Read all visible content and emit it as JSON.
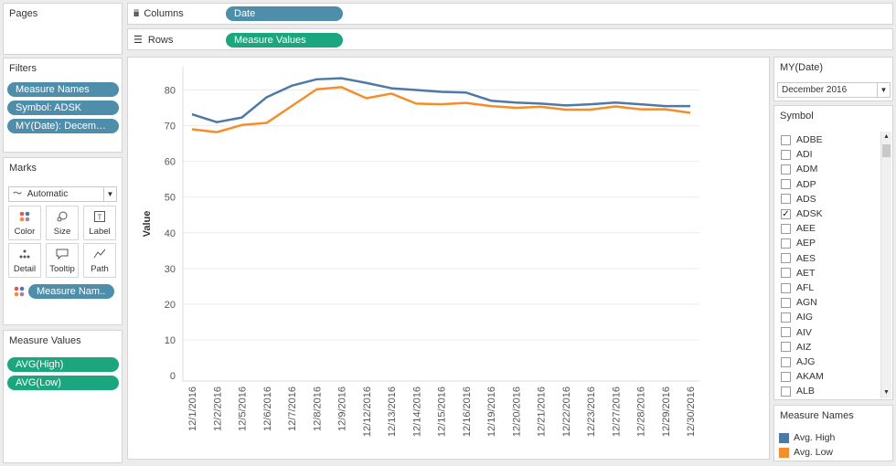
{
  "pages": {
    "title": "Pages"
  },
  "columns": {
    "label": "Columns",
    "pill": "Date"
  },
  "rows": {
    "label": "Rows",
    "pill": "Measure Values"
  },
  "filters": {
    "title": "Filters",
    "items": [
      "Measure Names",
      "Symbol: ADSK",
      "MY(Date): Decembe.."
    ]
  },
  "marks": {
    "title": "Marks",
    "mark_type": "Automatic",
    "buttons": [
      "Color",
      "Size",
      "Label",
      "Detail",
      "Tooltip",
      "Path"
    ],
    "color_pill": "Measure Nam.."
  },
  "measure_values": {
    "title": "Measure Values",
    "items": [
      "AVG(High)",
      "AVG(Low)"
    ]
  },
  "my_date": {
    "title": "MY(Date)",
    "selected": "December 2016"
  },
  "symbol": {
    "title": "Symbol",
    "items": [
      {
        "label": "ADBE",
        "checked": false
      },
      {
        "label": "ADI",
        "checked": false
      },
      {
        "label": "ADM",
        "checked": false
      },
      {
        "label": "ADP",
        "checked": false
      },
      {
        "label": "ADS",
        "checked": false
      },
      {
        "label": "ADSK",
        "checked": true
      },
      {
        "label": "AEE",
        "checked": false
      },
      {
        "label": "AEP",
        "checked": false
      },
      {
        "label": "AES",
        "checked": false
      },
      {
        "label": "AET",
        "checked": false
      },
      {
        "label": "AFL",
        "checked": false
      },
      {
        "label": "AGN",
        "checked": false
      },
      {
        "label": "AIG",
        "checked": false
      },
      {
        "label": "AIV",
        "checked": false
      },
      {
        "label": "AIZ",
        "checked": false
      },
      {
        "label": "AJG",
        "checked": false
      },
      {
        "label": "AKAM",
        "checked": false
      },
      {
        "label": "ALB",
        "checked": false
      }
    ]
  },
  "legend": {
    "title": "Measure Names",
    "items": [
      {
        "label": "Avg. High",
        "color": "#4e79a7"
      },
      {
        "label": "Avg. Low",
        "color": "#f28e2b"
      }
    ]
  },
  "chart_data": {
    "type": "line",
    "ylabel": "Value",
    "xlabel": "",
    "ylim": [
      0,
      85
    ],
    "yticks": [
      0,
      10,
      20,
      30,
      40,
      50,
      60,
      70,
      80
    ],
    "grid": true,
    "categories": [
      "12/1/2016",
      "12/2/2016",
      "12/5/2016",
      "12/6/2016",
      "12/7/2016",
      "12/8/2016",
      "12/9/2016",
      "12/12/2016",
      "12/13/2016",
      "12/14/2016",
      "12/15/2016",
      "12/16/2016",
      "12/19/2016",
      "12/20/2016",
      "12/21/2016",
      "12/22/2016",
      "12/23/2016",
      "12/27/2016",
      "12/28/2016",
      "12/29/2016",
      "12/30/2016"
    ],
    "series": [
      {
        "name": "Avg. High",
        "color": "#4e79a7",
        "values": [
          73.2,
          71.0,
          72.3,
          78.0,
          81.2,
          83.0,
          83.3,
          82.0,
          80.5,
          80.0,
          79.5,
          79.3,
          77.0,
          76.5,
          76.2,
          75.7,
          76.0,
          76.5,
          76.0,
          75.5,
          75.5
        ]
      },
      {
        "name": "Avg. Low",
        "color": "#f28e2b",
        "values": [
          69.0,
          68.2,
          70.2,
          70.8,
          75.5,
          80.2,
          80.8,
          77.7,
          79.0,
          76.2,
          76.0,
          76.4,
          75.5,
          75.0,
          75.3,
          74.5,
          74.5,
          75.4,
          74.6,
          74.6,
          73.6
        ]
      }
    ]
  }
}
